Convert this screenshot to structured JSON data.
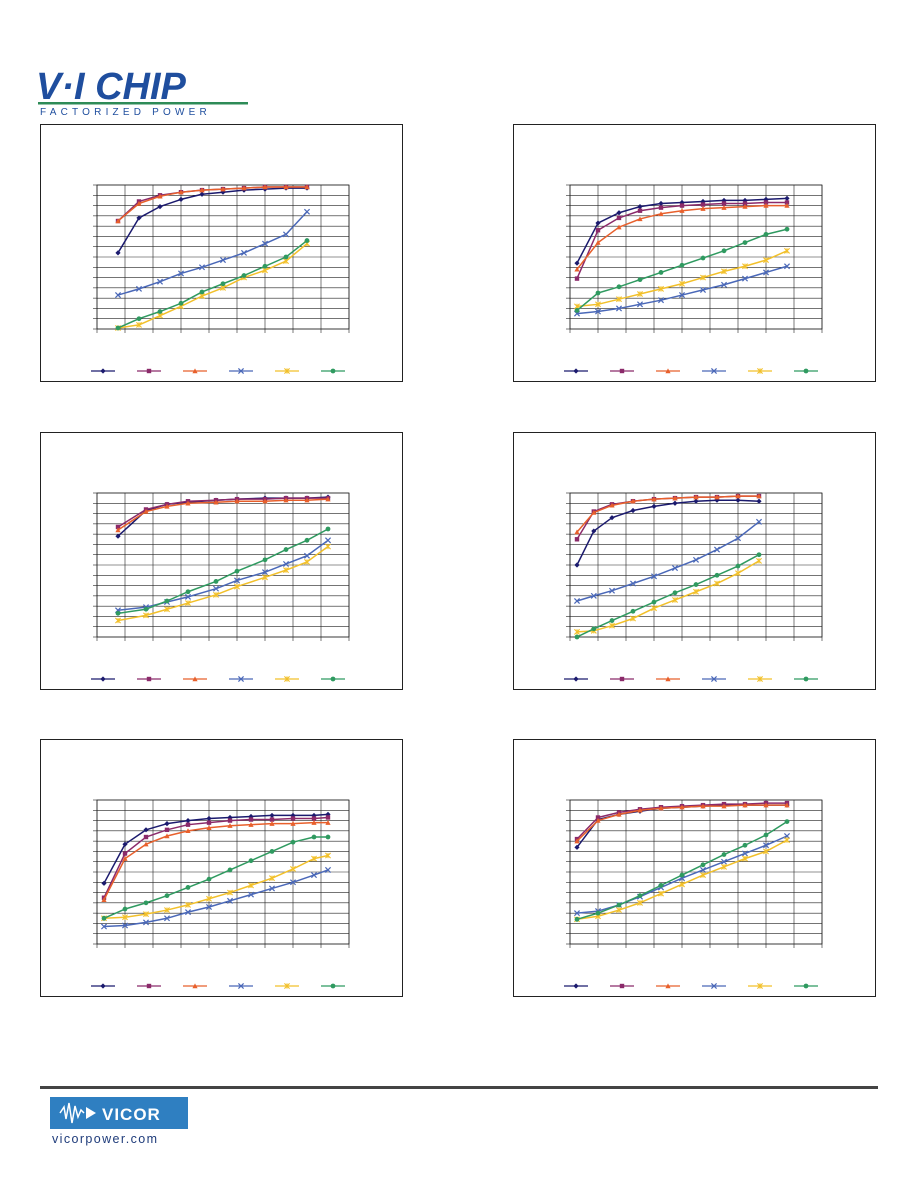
{
  "header": {
    "logo_main": "V·I CHIP",
    "logo_tagline": "FACTORIZED POWER",
    "logo_colors": {
      "primary": "#1f4e9e",
      "accent": "#2e8b57"
    }
  },
  "footer": {
    "logo_name": "VICOR",
    "url": "vicorpower.com",
    "logo_colors": {
      "box": "#2f7fc1",
      "text": "#1e3b7a"
    }
  },
  "series_colors": [
    "#1b1a6e",
    "#8b2a6a",
    "#e8602c",
    "#4a68b8",
    "#f2c02a",
    "#2f9a60"
  ],
  "series_markers": [
    "diamond",
    "square",
    "triangle",
    "x",
    "asterisk",
    "circle"
  ],
  "chart_data": [
    {
      "type": "line",
      "grid": true,
      "legend_placement": "bottom",
      "x_ticks": 9,
      "y_ticks": 14,
      "xlim": [
        0,
        9
      ],
      "ylim": [
        0,
        14
      ],
      "series": [
        {
          "x": [
            0.75,
            1.5,
            2.25,
            3,
            3.75,
            4.5,
            5.25,
            6,
            6.75,
            7.5
          ],
          "values": [
            7.4,
            10.8,
            11.9,
            12.6,
            13.1,
            13.3,
            13.5,
            13.6,
            13.7,
            13.7
          ]
        },
        {
          "x": [
            0.75,
            1.5,
            2.25,
            3,
            3.75,
            4.5,
            5.25,
            6,
            6.75,
            7.5
          ],
          "values": [
            10.5,
            12.4,
            13.0,
            13.3,
            13.5,
            13.6,
            13.7,
            13.8,
            13.8,
            13.8
          ]
        },
        {
          "x": [
            0.75,
            1.5,
            2.25,
            3,
            3.75,
            4.5,
            5.25,
            6,
            6.75,
            7.5
          ],
          "values": [
            10.5,
            12.2,
            12.9,
            13.3,
            13.5,
            13.6,
            13.7,
            13.8,
            13.8,
            13.8
          ]
        },
        {
          "x": [
            0.75,
            1.5,
            2.25,
            3,
            3.75,
            4.5,
            5.25,
            6,
            6.75,
            7.5
          ],
          "values": [
            3.3,
            3.9,
            4.6,
            5.4,
            6.0,
            6.7,
            7.4,
            8.3,
            9.2,
            11.4
          ]
        },
        {
          "x": [
            0.75,
            1.5,
            2.25,
            3,
            3.75,
            4.5,
            5.25,
            6,
            6.75,
            7.5
          ],
          "values": [
            0.1,
            0.4,
            1.3,
            2.2,
            3.2,
            4.0,
            5.0,
            5.7,
            6.6,
            8.3
          ]
        },
        {
          "x": [
            0.75,
            1.5,
            2.25,
            3,
            3.75,
            4.5,
            5.25,
            6,
            6.75,
            7.5
          ],
          "values": [
            0.1,
            1.0,
            1.7,
            2.5,
            3.6,
            4.4,
            5.2,
            6.1,
            7.0,
            8.6
          ]
        }
      ]
    },
    {
      "type": "line",
      "grid": true,
      "legend_placement": "bottom",
      "x_ticks": 9,
      "y_ticks": 14,
      "xlim": [
        0,
        9
      ],
      "ylim": [
        0,
        14
      ],
      "series": [
        {
          "x": [
            0.25,
            1,
            1.75,
            2.5,
            3.25,
            4,
            4.75,
            5.5,
            6.25,
            7,
            7.75
          ],
          "values": [
            6.4,
            10.3,
            11.3,
            11.9,
            12.2,
            12.3,
            12.4,
            12.5,
            12.5,
            12.6,
            12.7
          ]
        },
        {
          "x": [
            0.25,
            1,
            1.75,
            2.5,
            3.25,
            4,
            4.75,
            5.5,
            6.25,
            7,
            7.75
          ],
          "values": [
            4.9,
            9.6,
            10.8,
            11.5,
            11.8,
            12.0,
            12.1,
            12.2,
            12.2,
            12.3,
            12.3
          ]
        },
        {
          "x": [
            0.25,
            1,
            1.75,
            2.5,
            3.25,
            4,
            4.75,
            5.5,
            6.25,
            7,
            7.75
          ],
          "values": [
            5.8,
            8.4,
            9.9,
            10.7,
            11.2,
            11.5,
            11.7,
            11.8,
            11.9,
            12.0,
            12.0
          ]
        },
        {
          "x": [
            0.25,
            1,
            1.75,
            2.5,
            3.25,
            4,
            4.75,
            5.5,
            6.25,
            7,
            7.75
          ],
          "values": [
            1.5,
            1.7,
            2.0,
            2.4,
            2.8,
            3.3,
            3.8,
            4.3,
            4.9,
            5.5,
            6.1
          ]
        },
        {
          "x": [
            0.25,
            1,
            1.75,
            2.5,
            3.25,
            4,
            4.75,
            5.5,
            6.25,
            7,
            7.75
          ],
          "values": [
            2.2,
            2.4,
            2.9,
            3.4,
            3.9,
            4.4,
            5.0,
            5.6,
            6.1,
            6.7,
            7.6
          ]
        },
        {
          "x": [
            0.25,
            1,
            1.75,
            2.5,
            3.25,
            4,
            4.75,
            5.5,
            6.25,
            7,
            7.75
          ],
          "values": [
            1.8,
            3.5,
            4.1,
            4.8,
            5.5,
            6.2,
            6.9,
            7.6,
            8.4,
            9.2,
            9.7
          ]
        }
      ]
    },
    {
      "type": "line",
      "grid": true,
      "legend_placement": "bottom",
      "x_ticks": 9,
      "y_ticks": 14,
      "xlim": [
        0,
        9
      ],
      "ylim": [
        0,
        14
      ],
      "series": [
        {
          "x": [
            0.75,
            1.75,
            2.5,
            3.25,
            4.25,
            5,
            6,
            6.75,
            7.5,
            8.25
          ],
          "values": [
            9.8,
            12.3,
            12.9,
            13.1,
            13.3,
            13.4,
            13.5,
            13.5,
            13.5,
            13.6
          ]
        },
        {
          "x": [
            0.75,
            1.75,
            2.5,
            3.25,
            4.25,
            5,
            6,
            6.75,
            7.5,
            8.25
          ],
          "values": [
            10.7,
            12.4,
            12.9,
            13.2,
            13.3,
            13.4,
            13.4,
            13.5,
            13.5,
            13.5
          ]
        },
        {
          "x": [
            0.75,
            1.75,
            2.5,
            3.25,
            4.25,
            5,
            6,
            6.75,
            7.5,
            8.25
          ],
          "values": [
            10.4,
            12.2,
            12.7,
            13.0,
            13.1,
            13.2,
            13.2,
            13.3,
            13.3,
            13.4
          ]
        },
        {
          "x": [
            0.75,
            1.75,
            2.5,
            3.25,
            4.25,
            5,
            6,
            6.75,
            7.5,
            8.25
          ],
          "values": [
            2.6,
            2.9,
            3.4,
            3.9,
            4.7,
            5.5,
            6.3,
            7.1,
            7.9,
            9.4
          ]
        },
        {
          "x": [
            0.75,
            1.75,
            2.5,
            3.25,
            4.25,
            5,
            6,
            6.75,
            7.5,
            8.25
          ],
          "values": [
            1.6,
            2.1,
            2.7,
            3.3,
            4.1,
            4.9,
            5.8,
            6.5,
            7.3,
            8.8
          ]
        },
        {
          "x": [
            0.75,
            1.75,
            2.5,
            3.25,
            4.25,
            5,
            6,
            6.75,
            7.5,
            8.25
          ],
          "values": [
            2.3,
            2.7,
            3.5,
            4.4,
            5.4,
            6.4,
            7.5,
            8.5,
            9.4,
            10.5
          ]
        }
      ]
    },
    {
      "type": "line",
      "grid": true,
      "legend_placement": "bottom",
      "x_ticks": 9,
      "y_ticks": 14,
      "xlim": [
        0,
        9
      ],
      "ylim": [
        0,
        14
      ],
      "series": [
        {
          "x": [
            0.25,
            0.85,
            1.5,
            2.25,
            3,
            3.75,
            4.5,
            5.25,
            6,
            6.75
          ],
          "values": [
            7.0,
            10.3,
            11.6,
            12.3,
            12.7,
            13.0,
            13.2,
            13.3,
            13.3,
            13.2
          ]
        },
        {
          "x": [
            0.25,
            0.85,
            1.5,
            2.25,
            3,
            3.75,
            4.5,
            5.25,
            6,
            6.75
          ],
          "values": [
            9.5,
            12.2,
            12.9,
            13.2,
            13.4,
            13.5,
            13.6,
            13.6,
            13.7,
            13.7
          ]
        },
        {
          "x": [
            0.25,
            0.85,
            1.5,
            2.25,
            3,
            3.75,
            4.5,
            5.25,
            6,
            6.75
          ],
          "values": [
            10.2,
            12.1,
            12.8,
            13.2,
            13.4,
            13.5,
            13.6,
            13.6,
            13.7,
            13.7
          ]
        },
        {
          "x": [
            0.25,
            0.85,
            1.5,
            2.25,
            3,
            3.75,
            4.5,
            5.25,
            6,
            6.75
          ],
          "values": [
            3.5,
            4.0,
            4.5,
            5.2,
            5.9,
            6.7,
            7.5,
            8.5,
            9.6,
            11.2
          ]
        },
        {
          "x": [
            0.25,
            0.85,
            1.5,
            2.25,
            3,
            3.75,
            4.5,
            5.25,
            6,
            6.75
          ],
          "values": [
            0.5,
            0.6,
            1.1,
            1.8,
            2.8,
            3.6,
            4.4,
            5.2,
            6.2,
            7.4
          ]
        },
        {
          "x": [
            0.25,
            0.85,
            1.5,
            2.25,
            3,
            3.75,
            4.5,
            5.25,
            6,
            6.75
          ],
          "values": [
            0.0,
            0.8,
            1.6,
            2.5,
            3.4,
            4.3,
            5.1,
            6.0,
            6.9,
            8.0
          ]
        }
      ]
    },
    {
      "type": "line",
      "grid": true,
      "legend_placement": "bottom",
      "x_ticks": 9,
      "y_ticks": 14,
      "xlim": [
        0,
        9
      ],
      "ylim": [
        0,
        14
      ],
      "series": [
        {
          "x": [
            0.25,
            1,
            1.75,
            2.5,
            3.25,
            4,
            4.75,
            5.5,
            6.25,
            7,
            7.75,
            8.25
          ],
          "values": [
            5.9,
            9.7,
            11.1,
            11.7,
            12.0,
            12.2,
            12.3,
            12.4,
            12.5,
            12.5,
            12.5,
            12.6
          ]
        },
        {
          "x": [
            0.25,
            1,
            1.75,
            2.5,
            3.25,
            4,
            4.75,
            5.5,
            6.25,
            7,
            7.75,
            8.25
          ],
          "values": [
            4.5,
            8.8,
            10.4,
            11.1,
            11.6,
            11.8,
            12.0,
            12.1,
            12.1,
            12.2,
            12.2,
            12.3
          ]
        },
        {
          "x": [
            0.25,
            1,
            1.75,
            2.5,
            3.25,
            4,
            4.75,
            5.5,
            6.25,
            7,
            7.75,
            8.25
          ],
          "values": [
            4.3,
            8.3,
            9.7,
            10.5,
            11.0,
            11.3,
            11.5,
            11.6,
            11.7,
            11.7,
            11.8,
            11.8
          ]
        },
        {
          "x": [
            0.25,
            1,
            1.75,
            2.5,
            3.25,
            4,
            4.75,
            5.5,
            6.25,
            7,
            7.75,
            8.25
          ],
          "values": [
            1.7,
            1.8,
            2.1,
            2.5,
            3.1,
            3.6,
            4.2,
            4.8,
            5.4,
            6.0,
            6.7,
            7.2
          ]
        },
        {
          "x": [
            0.25,
            1,
            1.75,
            2.5,
            3.25,
            4,
            4.75,
            5.5,
            6.25,
            7,
            7.75,
            8.25
          ],
          "values": [
            2.5,
            2.6,
            2.9,
            3.3,
            3.8,
            4.4,
            5.0,
            5.7,
            6.4,
            7.3,
            8.3,
            8.6
          ]
        },
        {
          "x": [
            0.25,
            1,
            1.75,
            2.5,
            3.25,
            4,
            4.75,
            5.5,
            6.25,
            7,
            7.75,
            8.25
          ],
          "values": [
            2.5,
            3.4,
            4.0,
            4.7,
            5.5,
            6.3,
            7.2,
            8.1,
            9.0,
            9.9,
            10.4,
            10.4
          ]
        }
      ]
    },
    {
      "type": "line",
      "grid": true,
      "legend_placement": "bottom",
      "x_ticks": 9,
      "y_ticks": 14,
      "xlim": [
        0,
        9
      ],
      "ylim": [
        0,
        14
      ],
      "series": [
        {
          "x": [
            0.25,
            1,
            1.75,
            2.5,
            3.25,
            4,
            4.75,
            5.5,
            6.25,
            7,
            7.75
          ],
          "values": [
            9.4,
            12.1,
            12.6,
            12.9,
            13.2,
            13.3,
            13.4,
            13.5,
            13.5,
            13.5,
            13.5
          ]
        },
        {
          "x": [
            0.25,
            1,
            1.75,
            2.5,
            3.25,
            4,
            4.75,
            5.5,
            6.25,
            7,
            7.75
          ],
          "values": [
            10.2,
            12.3,
            12.8,
            13.1,
            13.3,
            13.4,
            13.5,
            13.6,
            13.6,
            13.7,
            13.7
          ]
        },
        {
          "x": [
            0.25,
            1,
            1.75,
            2.5,
            3.25,
            4,
            4.75,
            5.5,
            6.25,
            7,
            7.75
          ],
          "values": [
            10.0,
            12.0,
            12.6,
            13.0,
            13.2,
            13.3,
            13.4,
            13.4,
            13.5,
            13.5,
            13.5
          ]
        },
        {
          "x": [
            0.25,
            1,
            1.75,
            2.5,
            3.25,
            4,
            4.75,
            5.5,
            6.25,
            7,
            7.75
          ],
          "values": [
            3.0,
            3.2,
            3.8,
            4.6,
            5.5,
            6.4,
            7.2,
            8.0,
            8.8,
            9.6,
            10.5
          ]
        },
        {
          "x": [
            0.25,
            1,
            1.75,
            2.5,
            3.25,
            4,
            4.75,
            5.5,
            6.25,
            7,
            7.75
          ],
          "values": [
            2.4,
            2.7,
            3.3,
            4.0,
            4.9,
            5.8,
            6.7,
            7.5,
            8.3,
            9.0,
            10.1
          ]
        },
        {
          "x": [
            0.25,
            1,
            1.75,
            2.5,
            3.25,
            4,
            4.75,
            5.5,
            6.25,
            7,
            7.75
          ],
          "values": [
            2.4,
            3.0,
            3.8,
            4.7,
            5.7,
            6.7,
            7.7,
            8.7,
            9.6,
            10.6,
            11.9
          ]
        }
      ]
    }
  ]
}
